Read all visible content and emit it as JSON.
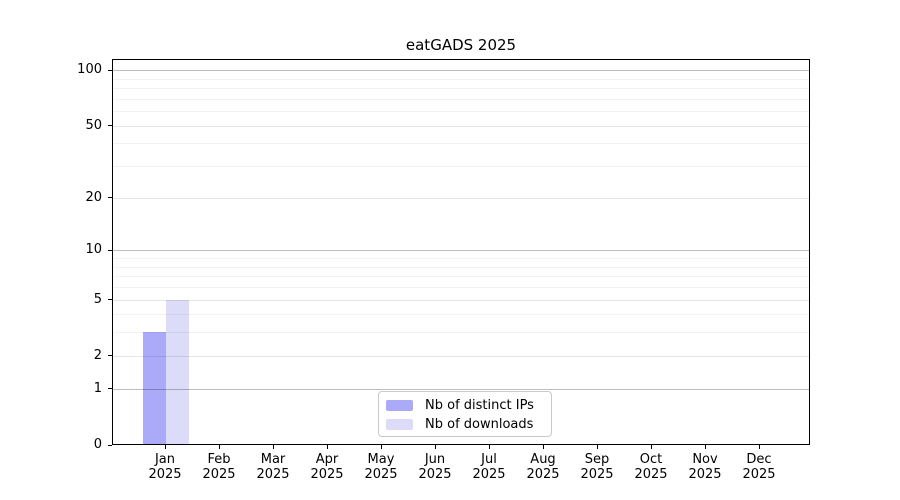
{
  "chart_data": {
    "type": "bar",
    "title": "eatGADS 2025",
    "x": {
      "months": [
        "Jan",
        "Feb",
        "Mar",
        "Apr",
        "May",
        "Jun",
        "Jul",
        "Aug",
        "Sep",
        "Oct",
        "Nov",
        "Dec"
      ],
      "year": "2025"
    },
    "series": [
      {
        "name": "Nb of distinct IPs",
        "color": "#aaaaf8",
        "values": [
          3,
          0,
          0,
          0,
          0,
          0,
          0,
          0,
          0,
          0,
          0,
          0
        ]
      },
      {
        "name": "Nb of downloads",
        "color": "#dcdcf8",
        "values": [
          5,
          0,
          0,
          0,
          0,
          0,
          0,
          0,
          0,
          0,
          0,
          0
        ]
      }
    ],
    "yscale": "log10(1+y)",
    "ylim": [
      0,
      115
    ],
    "y_major_ticks": [
      0,
      1,
      2,
      5,
      10,
      20,
      50,
      100
    ],
    "y_decade_gridlines": [
      1,
      10,
      100
    ],
    "y_mid_gridlines": [
      2,
      5,
      20,
      50
    ],
    "y_minor_gridlines": [
      3,
      4,
      6,
      7,
      8,
      9,
      30,
      40,
      60,
      70,
      80,
      90
    ],
    "grid": "horizontal",
    "legend_position": "bottom-center",
    "background_color": "#ffffff",
    "text_color": "#000000"
  }
}
